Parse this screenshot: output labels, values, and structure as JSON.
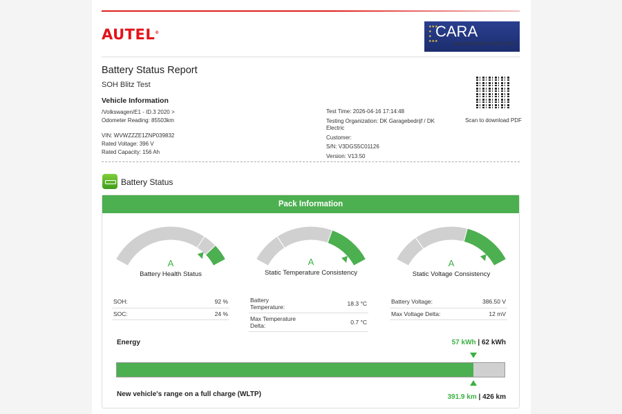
{
  "header": {
    "brand": "AUTEL",
    "badge_title": "CARA",
    "badge_subtitle": "Approved Battery Health Check"
  },
  "report": {
    "title": "Battery Status Report",
    "subtitle": "SOH Blitz Test",
    "section": "Vehicle Information"
  },
  "vehicle": {
    "path": "/Volkswagen/E1 - ID.3 2020 >",
    "odometer": "Odometer Reading: 85503km",
    "vin": "VIN: WVWZZZE1ZNP039832",
    "rated_voltage": "Rated Voltage: 396 V",
    "rated_capacity": "Rated Capacity: 156 Ah"
  },
  "test": {
    "time": "Test Time: 2026-04-16 17:14:48",
    "org": "Testing Organization: DK Garagebedrijf / DK Electric",
    "customer": "Customer:",
    "sn": "S/N: V3DGS5C01126",
    "version": "Version: V13.50"
  },
  "qr": {
    "caption": "Scan to download PDF"
  },
  "battery_status": {
    "label": "Battery Status",
    "panel_title": "Pack Information"
  },
  "gauges": [
    {
      "grade": "A",
      "name": "Battery Health Status",
      "rows": [
        {
          "k": "SOH:",
          "v": "92 %"
        },
        {
          "k": "SOC:",
          "v": "24 %"
        }
      ]
    },
    {
      "grade": "A",
      "name": "Static Temperature Consistency",
      "rows": [
        {
          "k": "Battery Temperature:",
          "v": "18.3 °C"
        },
        {
          "k": "Max Temperature Delta:",
          "v": "0.7 °C"
        }
      ]
    },
    {
      "grade": "A",
      "name": "Static Voltage Consistency",
      "rows": [
        {
          "k": "Battery Voltage:",
          "v": "386.50 V"
        },
        {
          "k": "Max Voltage Delta:",
          "v": "12 mV"
        }
      ]
    }
  ],
  "energy": {
    "label": "Energy",
    "current": "57 kWh",
    "total": "62 kWh",
    "fraction": 0.919,
    "range_label": "New vehicle's range on a full charge (WLTP)",
    "range_current": "391.9 km",
    "range_total": "426 km"
  },
  "colors": {
    "accent": "#4caf50",
    "brand": "#e3131b",
    "gauge_gray": "#d0d0d0"
  }
}
